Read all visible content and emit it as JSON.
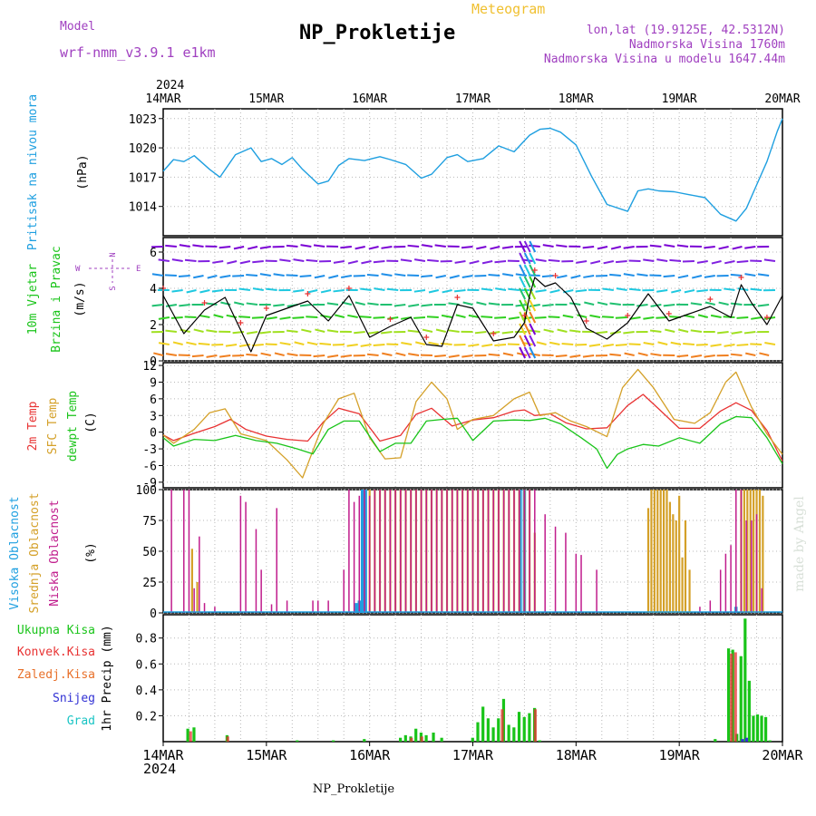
{
  "header": {
    "model_label": "Model",
    "model_name": "wrf-nmm_v3.9.1 e1km",
    "title": "NP_Prokletije",
    "subtitle": "Meteogram",
    "lonlat": "lon,lat (19.9125E, 42.5312N)",
    "altitude": "Nadmorska Visina 1760m",
    "model_altitude": "Nadmorska Visina u modelu 1647.44m"
  },
  "footer": {
    "station": "NP_Prokletije",
    "credit": "made by Angel"
  },
  "colors": {
    "pressure": "#1e9fe0",
    "wind_label": "#19c419",
    "t2m": "#e83232",
    "sfc": "#d4a028",
    "dewpt": "#19c419",
    "cloud_high": "#1e9fe0",
    "cloud_mid": "#d4a028",
    "cloud_low": "#c01c8c",
    "rain_total": "#19c419",
    "rain_conv": "#e83232",
    "rain_frz": "#e8702a",
    "snow": "#3232d4",
    "graupel": "#19c4c4",
    "compass": "#a040c0"
  },
  "axis": {
    "year": "2024",
    "dates": [
      "14MAR",
      "15MAR",
      "16MAR",
      "17MAR",
      "18MAR",
      "19MAR",
      "20MAR"
    ]
  },
  "panels": {
    "pressure": {
      "label": "Pritisak na nivou mora",
      "unit": "(hPa)"
    },
    "wind": {
      "label1": "10m Vjetar",
      "label2": "Brzina i Pravac",
      "unit": "(m/s)",
      "compass": [
        "N",
        "S",
        "W",
        "E"
      ]
    },
    "temp": {
      "label1": "2m Temp",
      "label2": "SFC Temp",
      "label3": "dewpt Temp",
      "unit": "(C)"
    },
    "cloud": {
      "label1": "Visoka Oblacnost",
      "label2": "Srednja Oblacnost",
      "label3": "Niska Oblacnost",
      "unit": "(%)"
    },
    "precip": {
      "labels": [
        "Ukupna Kisa",
        "Konvek.Kisa",
        "Zaledj.Kisa",
        "Snijeg",
        "Grad"
      ],
      "unit": "1hr Precip (mm)"
    }
  },
  "chart_data": [
    {
      "type": "line",
      "name": "pressure",
      "ylabel": "Pritisak na nivou mora (hPa)",
      "ylim": [
        1011,
        1024
      ],
      "yticks": [
        1014,
        1017,
        1020,
        1023
      ],
      "x_unit": "day offset from 14MAR 00",
      "x": [
        0,
        0.1,
        0.2,
        0.3,
        0.45,
        0.55,
        0.7,
        0.85,
        0.95,
        1.05,
        1.15,
        1.25,
        1.35,
        1.5,
        1.6,
        1.7,
        1.8,
        1.95,
        2.1,
        2.2,
        2.35,
        2.5,
        2.6,
        2.75,
        2.85,
        2.95,
        3.1,
        3.25,
        3.4,
        3.55,
        3.65,
        3.75,
        3.85,
        4.0,
        4.15,
        4.3,
        4.5,
        4.6,
        4.7,
        4.8,
        4.95,
        5.1,
        5.25,
        5.4,
        5.55,
        5.65,
        5.75,
        5.85,
        5.95,
        6.0
      ],
      "values": [
        1017.6,
        1018.8,
        1018.6,
        1019.2,
        1017.8,
        1017.0,
        1019.3,
        1020.0,
        1018.6,
        1018.9,
        1018.3,
        1019.0,
        1017.8,
        1016.3,
        1016.6,
        1018.2,
        1018.9,
        1018.7,
        1019.1,
        1018.8,
        1018.3,
        1016.9,
        1017.3,
        1019.0,
        1019.3,
        1018.6,
        1018.9,
        1020.2,
        1019.6,
        1021.3,
        1021.9,
        1022.0,
        1021.6,
        1020.3,
        1017.1,
        1014.2,
        1013.5,
        1015.6,
        1015.8,
        1015.6,
        1015.5,
        1015.2,
        1014.9,
        1013.2,
        1012.5,
        1013.8,
        1016.2,
        1018.6,
        1021.7,
        1023.0
      ]
    },
    {
      "type": "line",
      "name": "wind_speed",
      "ylabel": "10m Vjetar Brzina i Pravac (m/s)",
      "ylim": [
        0,
        6.8
      ],
      "yticks": [
        0,
        2,
        4,
        6
      ],
      "x": [
        0,
        0.2,
        0.4,
        0.6,
        0.75,
        0.85,
        1.0,
        1.2,
        1.4,
        1.6,
        1.8,
        2.0,
        2.2,
        2.4,
        2.55,
        2.7,
        2.85,
        3.0,
        3.2,
        3.4,
        3.5,
        3.55,
        3.6,
        3.7,
        3.8,
        3.95,
        4.1,
        4.3,
        4.5,
        4.7,
        4.9,
        5.1,
        5.3,
        5.5,
        5.6,
        5.7,
        5.85,
        6.0
      ],
      "values": [
        3.6,
        1.5,
        2.8,
        3.5,
        1.7,
        0.5,
        2.5,
        2.9,
        3.3,
        2.2,
        3.6,
        1.3,
        1.9,
        2.4,
        0.9,
        0.8,
        3.1,
        2.9,
        1.1,
        1.3,
        2.1,
        3.6,
        4.6,
        4.1,
        4.3,
        3.5,
        1.8,
        1.2,
        2.1,
        3.7,
        2.2,
        2.6,
        3.0,
        2.4,
        4.2,
        3.2,
        2.0,
        3.6
      ]
    },
    {
      "type": "line",
      "name": "temperature",
      "ylabel": "Temp (C)",
      "ylim": [
        -10,
        12.5
      ],
      "yticks": [
        -9,
        -6,
        -3,
        0,
        3,
        6,
        9,
        12
      ],
      "series": [
        {
          "name": "2m Temp",
          "x": [
            0,
            0.1,
            0.3,
            0.5,
            0.65,
            0.8,
            1.0,
            1.2,
            1.4,
            1.55,
            1.7,
            1.9,
            2.1,
            2.3,
            2.45,
            2.6,
            2.8,
            3.0,
            3.2,
            3.4,
            3.5,
            3.6,
            3.75,
            3.9,
            4.1,
            4.3,
            4.5,
            4.65,
            4.8,
            5.0,
            5.2,
            5.4,
            5.55,
            5.7,
            5.85,
            6.0
          ],
          "values": [
            -0.5,
            -1.5,
            -0.2,
            1.0,
            2.3,
            0.5,
            -0.7,
            -1.3,
            -1.6,
            1.8,
            4.3,
            3.3,
            -1.6,
            -0.6,
            3.2,
            4.3,
            1.1,
            2.2,
            2.6,
            3.8,
            4.0,
            3.0,
            3.3,
            1.7,
            0.6,
            0.8,
            4.8,
            6.8,
            4.2,
            0.7,
            0.7,
            3.8,
            5.3,
            3.9,
            0.3,
            -5.2
          ]
        },
        {
          "name": "SFC Temp",
          "x": [
            0,
            0.1,
            0.3,
            0.45,
            0.6,
            0.75,
            1.0,
            1.2,
            1.35,
            1.55,
            1.7,
            1.85,
            2.0,
            2.15,
            2.3,
            2.45,
            2.6,
            2.75,
            2.85,
            3.0,
            3.2,
            3.4,
            3.55,
            3.65,
            3.8,
            3.95,
            4.1,
            4.3,
            4.45,
            4.6,
            4.75,
            4.95,
            5.15,
            5.3,
            5.45,
            5.55,
            5.7,
            5.85,
            6.0
          ],
          "values": [
            -0.5,
            -2.0,
            0.5,
            3.5,
            4.2,
            -0.3,
            -1.5,
            -5.0,
            -8.2,
            1.5,
            6.0,
            7.0,
            -1.0,
            -4.8,
            -4.6,
            5.5,
            9.0,
            6.0,
            0.5,
            2.3,
            3.0,
            6.0,
            7.2,
            3.0,
            3.5,
            2.0,
            1.0,
            -0.8,
            8.0,
            11.3,
            8.0,
            2.3,
            1.6,
            3.5,
            9.0,
            10.8,
            4.5,
            -0.3,
            -4.0
          ]
        },
        {
          "name": "dewpt Temp",
          "x": [
            0,
            0.1,
            0.3,
            0.5,
            0.7,
            0.9,
            1.1,
            1.3,
            1.45,
            1.6,
            1.75,
            1.9,
            2.1,
            2.25,
            2.4,
            2.55,
            2.7,
            2.85,
            3.0,
            3.2,
            3.4,
            3.55,
            3.7,
            3.85,
            4.05,
            4.2,
            4.3,
            4.4,
            4.5,
            4.65,
            4.8,
            5.0,
            5.2,
            5.4,
            5.55,
            5.7,
            5.85,
            6.0
          ],
          "values": [
            -1.0,
            -2.5,
            -1.3,
            -1.5,
            -0.6,
            -1.5,
            -2.0,
            -3.0,
            -3.9,
            0.5,
            2.0,
            2.0,
            -3.5,
            -2.0,
            -2.0,
            2.0,
            2.3,
            2.5,
            -1.5,
            2.0,
            2.2,
            2.1,
            2.5,
            1.5,
            -1.0,
            -3.0,
            -6.5,
            -4.0,
            -3.0,
            -2.2,
            -2.5,
            -1.0,
            -2.0,
            1.5,
            2.8,
            2.6,
            -1.0,
            -5.7
          ]
        }
      ]
    },
    {
      "type": "bar",
      "name": "cloud_cover",
      "ylabel": "Oblacnost (%)",
      "ylim": [
        0,
        100
      ],
      "yticks": [
        0,
        25,
        50,
        75,
        100
      ],
      "series": [
        {
          "name": "Visoka Oblacnost",
          "x": [
            1.87,
            1.9,
            1.93,
            1.96,
            3.46,
            3.5,
            5.55
          ],
          "values": [
            8,
            10,
            100,
            100,
            100,
            100,
            5
          ]
        },
        {
          "name": "Srednja Oblacnost",
          "x": [
            0.28,
            0.33,
            2.0,
            2.05,
            2.1,
            2.15,
            2.2,
            2.25,
            2.3,
            2.35,
            2.4,
            2.45,
            2.5,
            2.55,
            2.6,
            2.65,
            2.7,
            2.75,
            2.8,
            2.85,
            2.9,
            2.95,
            3.0,
            3.05,
            3.1,
            3.15,
            3.2,
            3.25,
            3.3,
            3.35,
            3.4,
            3.45,
            3.5,
            3.55,
            3.6,
            4.7,
            4.73,
            4.76,
            4.79,
            4.82,
            4.85,
            4.88,
            4.91,
            4.94,
            4.97,
            5.0,
            5.03,
            5.06,
            5.1,
            5.6,
            5.63,
            5.66,
            5.69,
            5.72,
            5.75,
            5.78,
            5.81
          ],
          "values": [
            52,
            25,
            100,
            100,
            100,
            100,
            100,
            100,
            100,
            100,
            100,
            100,
            100,
            100,
            100,
            100,
            100,
            100,
            100,
            100,
            100,
            100,
            100,
            100,
            100,
            100,
            100,
            100,
            100,
            100,
            100,
            100,
            100,
            100,
            65,
            85,
            100,
            100,
            100,
            100,
            100,
            100,
            90,
            80,
            75,
            95,
            45,
            75,
            35,
            100,
            100,
            100,
            100,
            100,
            100,
            100,
            95
          ]
        },
        {
          "name": "Niska Oblacnost",
          "x": [
            0.08,
            0.2,
            0.25,
            0.3,
            0.35,
            0.4,
            0.5,
            0.75,
            0.8,
            0.9,
            0.95,
            1.05,
            1.1,
            1.2,
            1.45,
            1.5,
            1.6,
            1.75,
            1.8,
            1.85,
            1.9,
            1.95,
            2.0,
            2.05,
            2.1,
            2.15,
            2.2,
            2.25,
            2.3,
            2.35,
            2.4,
            2.45,
            2.5,
            2.55,
            2.6,
            2.65,
            2.7,
            2.75,
            2.8,
            2.85,
            2.9,
            2.95,
            3.0,
            3.05,
            3.1,
            3.15,
            3.2,
            3.25,
            3.3,
            3.35,
            3.4,
            3.45,
            3.5,
            3.55,
            3.6,
            3.7,
            3.8,
            3.9,
            4.0,
            4.05,
            4.2,
            5.2,
            5.3,
            5.4,
            5.45,
            5.5,
            5.55,
            5.6,
            5.65,
            5.7,
            5.75,
            5.8
          ],
          "values": [
            100,
            100,
            100,
            20,
            62,
            8,
            5,
            95,
            90,
            68,
            35,
            7,
            85,
            10,
            10,
            10,
            10,
            35,
            100,
            90,
            95,
            100,
            95,
            100,
            100,
            100,
            100,
            100,
            100,
            100,
            100,
            100,
            100,
            100,
            100,
            100,
            100,
            100,
            100,
            100,
            100,
            100,
            100,
            100,
            100,
            100,
            100,
            100,
            100,
            100,
            100,
            100,
            100,
            100,
            100,
            80,
            70,
            65,
            48,
            47,
            35,
            5,
            10,
            35,
            48,
            55,
            100,
            100,
            75,
            75,
            80,
            20
          ]
        }
      ]
    },
    {
      "type": "bar",
      "name": "precipitation",
      "ylabel": "1hr Precip (mm)",
      "ylim": [
        0,
        0.98
      ],
      "yticks": [
        0.2,
        0.4,
        0.6,
        0.8
      ],
      "series": [
        {
          "name": "Ukupna Kisa",
          "x": [
            0.24,
            0.3,
            0.62,
            1.3,
            1.65,
            1.95,
            2.3,
            2.35,
            2.4,
            2.45,
            2.5,
            2.55,
            2.62,
            2.7,
            3.0,
            3.05,
            3.1,
            3.15,
            3.2,
            3.25,
            3.3,
            3.35,
            3.4,
            3.45,
            3.5,
            3.55,
            3.6,
            3.65,
            5.35,
            5.48,
            5.52,
            5.56,
            5.6,
            5.64,
            5.68,
            5.72,
            5.76,
            5.8,
            5.84,
            5.88
          ],
          "values": [
            0.1,
            0.11,
            0.05,
            0.01,
            0.01,
            0.02,
            0.03,
            0.05,
            0.04,
            0.1,
            0.07,
            0.05,
            0.07,
            0.03,
            0.03,
            0.15,
            0.27,
            0.18,
            0.11,
            0.18,
            0.33,
            0.13,
            0.11,
            0.23,
            0.19,
            0.22,
            0.26,
            0.01,
            0.02,
            0.72,
            0.71,
            0.06,
            0.66,
            0.95,
            0.47,
            0.2,
            0.21,
            0.2,
            0.19,
            0.01
          ]
        },
        {
          "name": "Konvek.Kisa",
          "x": [
            0.26,
            0.62,
            2.4,
            2.5,
            3.28,
            3.6,
            5.5,
            5.54
          ],
          "values": [
            0.08,
            0.04,
            0.03,
            0.04,
            0.25,
            0.25,
            0.68,
            0.69
          ]
        },
        {
          "name": "Snijeg",
          "x": [
            5.6,
            5.64
          ],
          "values": [
            0.02,
            0.03
          ]
        }
      ]
    }
  ]
}
